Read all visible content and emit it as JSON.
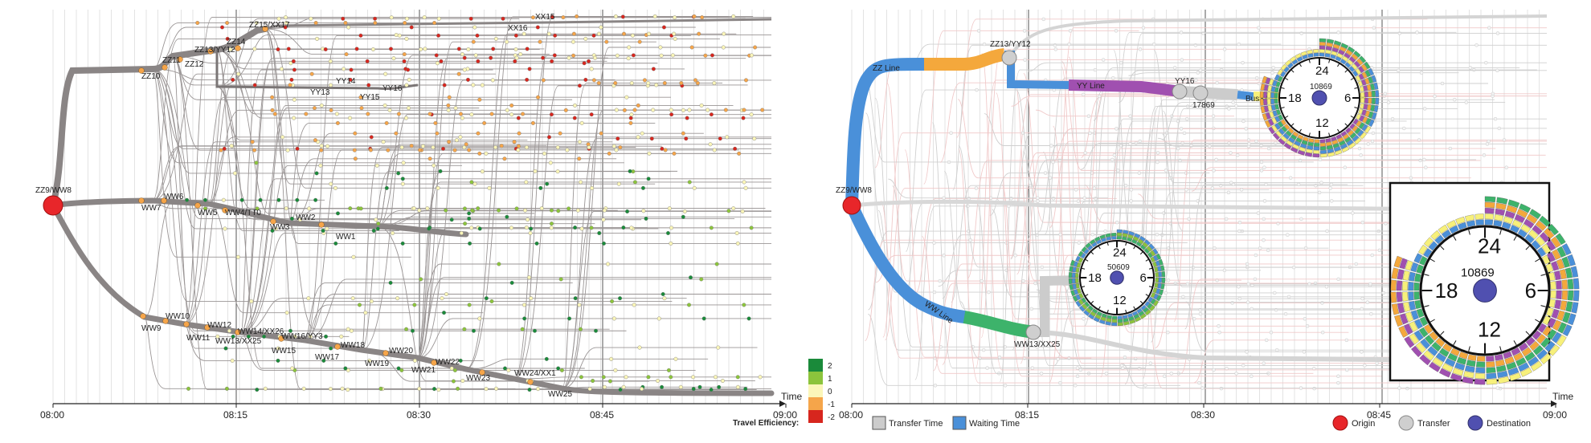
{
  "left_panel": {
    "time_axis_label": "Time",
    "time_ticks": [
      "08:00",
      "08:15",
      "08:30",
      "08:45",
      "09:00"
    ],
    "origin_label": "ZZ9/WW8",
    "stations": [
      "ZZ10",
      "ZZ11",
      "ZZ12",
      "ZZ13/YY12",
      "ZZ14",
      "ZZ15/XX17",
      "XX15",
      "XX16",
      "YY13",
      "YY14",
      "YY15",
      "YY16",
      "WW7",
      "WW6",
      "WW5",
      "WW4/TT0",
      "WW3",
      "WW2",
      "WW1",
      "WW9",
      "WW10",
      "WW11",
      "WW12",
      "WW13/XX25",
      "WW14/XX26",
      "WW15",
      "WW16/YY3",
      "WW17",
      "WW18",
      "WW19",
      "WW20",
      "WW21",
      "WW22",
      "WW23",
      "WW24/XX1",
      "WW25"
    ],
    "efficiency_legend": {
      "title": "Travel Efficiency:",
      "levels": [
        {
          "label": "2",
          "color": "#1a8a3a"
        },
        {
          "label": "1",
          "color": "#8cc43c"
        },
        {
          "label": "0",
          "color": "#fbf6b9"
        },
        {
          "label": "-1",
          "color": "#f5a54a"
        },
        {
          "label": "-2",
          "color": "#d7261e"
        }
      ]
    }
  },
  "right_panel": {
    "time_axis_label": "Time",
    "time_ticks": [
      "08:00",
      "08:15",
      "08:30",
      "08:45",
      "09:00"
    ],
    "origin_label": "ZZ9/WW8",
    "line_labels": [
      "ZZ Line",
      "YY Line",
      "WW Line",
      "Bus37"
    ],
    "transfer_labels": [
      "ZZ13/YY12",
      "YY16",
      "17869",
      "WW13/XX25"
    ],
    "clocks": [
      {
        "id": "10869",
        "numbers": [
          "24",
          "6",
          "12",
          "18"
        ]
      },
      {
        "id": "50609",
        "numbers": [
          "24",
          "6",
          "12",
          "18"
        ]
      }
    ],
    "zoom_clock": {
      "id": "10869",
      "numbers": [
        "24",
        "6",
        "12",
        "18"
      ]
    },
    "legend": [
      {
        "label": "Transfer Time",
        "color": "#cccccc"
      },
      {
        "label": "Waiting Time",
        "color": "#4a90d9"
      }
    ],
    "symbol_legend": [
      {
        "label": "Origin",
        "color": "#e8262a"
      },
      {
        "label": "Transfer",
        "color": "#cfcfcf"
      },
      {
        "label": "Destination",
        "color": "#5050b0"
      }
    ]
  },
  "colors": {
    "route_gray": "#8a8585",
    "zz_blue": "#4a90d9",
    "orange": "#f4a83c",
    "purple": "#a050b0",
    "green": "#3db36b",
    "yellow": "#f7f07a",
    "origin_red": "#e8262a"
  }
}
